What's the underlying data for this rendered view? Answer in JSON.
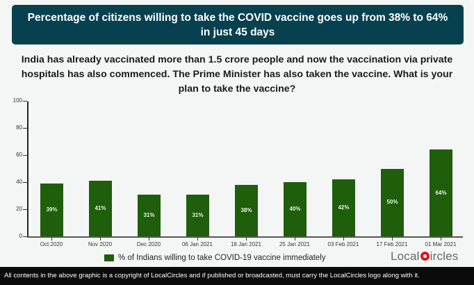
{
  "header": {
    "title": "Percentage of citizens willing to take the COVID vaccine goes up from 38% to 64% in just 45 days"
  },
  "subtitle": "India has already vaccinated more than 1.5 crore people and now the vaccination via private hospitals has also commenced. The Prime Minister has also taken the vaccine. What is your plan to take the vaccine?",
  "chart_data": {
    "type": "bar",
    "title": "Percentage of citizens willing to take the COVID vaccine goes up from 38% to 64% in just 45 days",
    "categories": [
      "Oct 2020",
      "Nov 2020",
      "Dec 2020",
      "06 Jan 2021",
      "18 Jan 2021",
      "25 Jan 2021",
      "03 Feb 2021",
      "17 Feb 2021",
      "01 Mar 2021"
    ],
    "series": [
      {
        "name": "% of Indians willing to take COVID-19 vaccine immediately",
        "values": [
          39,
          41,
          31,
          31,
          38,
          40,
          42,
          50,
          64
        ],
        "color": "#1f5e0b"
      }
    ],
    "data_labels": [
      "39%",
      "41%",
      "31%",
      "31%",
      "38%",
      "40%",
      "42%",
      "50%",
      "64%"
    ],
    "xlabel": "",
    "ylabel": "",
    "ylim": [
      0,
      100
    ],
    "yticks": [
      "0",
      "20",
      "40",
      "60",
      "80",
      "100"
    ],
    "grid": false,
    "legend_position": "bottom"
  },
  "legend": {
    "label": "% of Indians willing to take COVID-19 vaccine immediately"
  },
  "logo": {
    "left": "Local",
    "right": "ircles"
  },
  "footer": {
    "text": "All contents in the above graphic is a copyright of LocalCircles and if published or broadcasted, must carry the LocalCircles logo along with it."
  },
  "colors": {
    "header_bg": "#074150",
    "bar": "#1f5e0b",
    "footer_bg": "#0b0b0b",
    "logo_pin": "#d71a1f"
  }
}
